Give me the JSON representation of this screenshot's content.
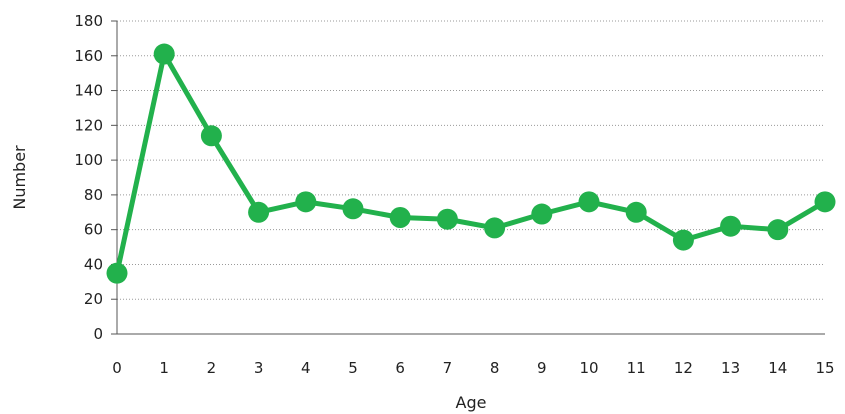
{
  "chart_data": {
    "type": "line",
    "xlabel": "Age",
    "ylabel": "Number",
    "x": [
      "0",
      "1",
      "2",
      "3",
      "4",
      "5",
      "6",
      "7",
      "8",
      "9",
      "10",
      "11",
      "12",
      "13",
      "14",
      "15"
    ],
    "series": [
      {
        "values": [
          35,
          161,
          114,
          70,
          76,
          72,
          67,
          66,
          61,
          69,
          76,
          70,
          54,
          62,
          60,
          76
        ],
        "color": "#22b14c"
      }
    ],
    "ylim": [
      0,
      180
    ],
    "yticks": [
      0,
      20,
      40,
      60,
      80,
      100,
      120,
      140,
      160,
      180
    ],
    "xlim": [
      0,
      15
    ],
    "grid": "horizontal-dotted",
    "legend": "none"
  }
}
